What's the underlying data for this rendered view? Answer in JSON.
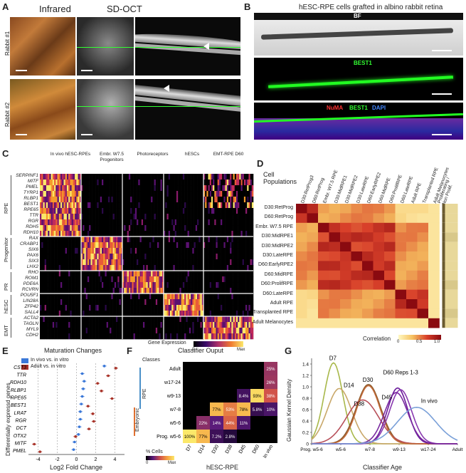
{
  "panelA": {
    "label": "A",
    "header_ir": "Infrared",
    "header_oct": "SD-OCT",
    "row1": "Rabbit #1",
    "row2": "Rabbit #2"
  },
  "panelB": {
    "label": "B",
    "title": "hESC-RPE cells grafted in albino rabbit retina",
    "bf": "BF",
    "best1": "BEST1",
    "merge_numa": "NuMA",
    "merge_best1": "BEST1",
    "merge_dapi": "DAPI"
  },
  "panelC": {
    "label": "C",
    "col_headers": [
      "In vivo hESC-RPEs",
      "Embr. W7.5 Progenitors",
      "Photoreceptors",
      "hESCs",
      "EMT-RPE D60"
    ],
    "groups": [
      "RPE",
      "Progenitor",
      "PR",
      "hESC",
      "EMT"
    ],
    "genes": [
      "SERPINF1",
      "MITF",
      "PMEL",
      "TYRP1",
      "RLBP1",
      "BEST1",
      "RPE65",
      "TTR",
      "RGR",
      "RDH5",
      "RDH10",
      "RAX",
      "CRABP1",
      "SIX6",
      "PAX6",
      "SIX3",
      "LHX2",
      "RHO",
      "ROM1",
      "PDE6A",
      "RCVRN",
      "POU5F1",
      "LIN28A",
      "ZFP42",
      "SALL4",
      "ACTA2",
      "TAGLN",
      "MYL9",
      "CDH2"
    ],
    "legend_title": "Gene Expression",
    "legend_min": "0",
    "legend_max": "Max"
  },
  "panelD": {
    "label": "D",
    "title": "Cell Populations",
    "rows": [
      "D30:RetProg",
      "D60:RetProg",
      "Embr. W7.5 RPE",
      "D30:MidRPE1",
      "D30:MidRPE2",
      "D30:LateRPE",
      "D60:EarlyRPE2",
      "D60:MidRPE",
      "D60:ProlifRPE",
      "D60:LateRPE",
      "Adult RPE",
      "Transplanted RPE",
      "Adult Melanocytes"
    ],
    "cols": [
      "D30:RetProg3",
      "D60:RetProg",
      "Embr. W7.5 RPE",
      "D30:MidRPE1",
      "D30:MidRPE2",
      "D30:LateRPE",
      "D60:EarlyRPE2",
      "D60:MidRPE",
      "D60:ProlifRPE",
      "D60:LateRPE",
      "Adult RPE",
      "Transplanted RPE",
      "Adult Melanocytes",
      "Proliferating / Non Prolif."
    ],
    "legend_title": "Correlation",
    "legend_ticks": [
      "0",
      "0.5",
      "1.0"
    ]
  },
  "panelE": {
    "label": "E",
    "title": "Maturation Changes",
    "legend_invivo": "In vivo vs. in vitro",
    "legend_adult": "Adult vs. in vitro",
    "ylabel": "Differentially expressd genes",
    "xlabel": "Log2 Fold Change",
    "xticks": [
      "-4",
      "-2",
      "0",
      "2",
      "4"
    ],
    "colors": {
      "invivo": "#3b78d8",
      "adult": "#a83228"
    },
    "chart_data": {
      "type": "scatter",
      "categories": [
        "CST3",
        "TTR",
        "RDH10",
        "RLBP1",
        "RPE65",
        "BEST1",
        "LRAT",
        "RGR",
        "DCT",
        "OTX2",
        "MITF",
        "PMEL"
      ],
      "series": [
        {
          "name": "In vivo vs. in vitro",
          "values": [
            2.9,
            0.6,
            0.8,
            0.7,
            0.6,
            0.5,
            0.4,
            0.4,
            0.3,
            0.2,
            -0.2,
            -0.3
          ]
        },
        {
          "name": "Adult vs. in vitro",
          "values": [
            4.1,
            3.3,
            2.2,
            2.6,
            3.7,
            1.2,
            1.7,
            1.8,
            1.3,
            -0.1,
            -4.4,
            -3.8
          ]
        }
      ],
      "xlim": [
        -5,
        5
      ]
    }
  },
  "panelF": {
    "label": "F",
    "title": "Classifier Ouput",
    "classes_label": "Classes",
    "rpe_label": "RPE",
    "embryonic_label": "Embryonic",
    "xlabel": "hESC-RPE",
    "legend_title": "% Cells",
    "legend_min": "0",
    "legend_max": "Max",
    "chart_data": {
      "type": "heatmap",
      "rows": [
        "Adult",
        "w17-24",
        "w9-13",
        "w7-8",
        "w5-6",
        "Prog. w5-6"
      ],
      "cols": [
        "D7",
        "D14",
        "D30",
        "D38",
        "D45",
        "D60",
        "In vivo"
      ],
      "values": [
        [
          0,
          0,
          0,
          0,
          0,
          0,
          25
        ],
        [
          0,
          0,
          0,
          0,
          0,
          0,
          26
        ],
        [
          0,
          0,
          0,
          0,
          8.4,
          93,
          38
        ],
        [
          0,
          0,
          77,
          53,
          78,
          5.8,
          10
        ],
        [
          0,
          22,
          14,
          44,
          11,
          0,
          0
        ],
        [
          100,
          77,
          7.2,
          2.8,
          0,
          0,
          0
        ]
      ],
      "labels": [
        [
          "",
          "",
          "",
          "",
          "",
          "",
          "25%"
        ],
        [
          "",
          "",
          "",
          "",
          "",
          "",
          "26%"
        ],
        [
          "",
          "",
          "",
          "",
          "8.4%",
          "93%",
          "38%"
        ],
        [
          "",
          "",
          "77%",
          "53%",
          "78%",
          "5.8%",
          "10%"
        ],
        [
          "",
          "22%",
          "14%",
          "44%",
          "11%",
          "",
          ""
        ],
        [
          "100%",
          "77%",
          "7.2%",
          "2.8%",
          "",
          "",
          ""
        ]
      ]
    }
  },
  "panelG": {
    "label": "G",
    "ylabel": "Gaussian Kernel Density",
    "xlabel": "Classifier Age",
    "xticks": [
      "Prog. w5-6",
      "w5-6",
      "w7-8",
      "w9-13",
      "w17-24",
      "Adult"
    ],
    "yticks": [
      "0",
      "0.2",
      "0.4",
      "0.6",
      "0.8",
      "1.0",
      "1.2",
      "1.4"
    ],
    "chart_data": {
      "type": "line",
      "x_categories": [
        "Prog. w5-6",
        "w5-6",
        "w7-8",
        "w9-13",
        "w17-24",
        "Adult"
      ],
      "ylim": [
        0,
        1.5
      ],
      "series": [
        {
          "name": "D7",
          "color": "#a8b84a",
          "peak_x": 0.75,
          "peak_y": 1.42,
          "width": 0.32
        },
        {
          "name": "D14",
          "color": "#c9a86a",
          "peak_x": 0.95,
          "peak_y": 0.97,
          "width": 0.42
        },
        {
          "name": "D30",
          "color": "#8a5a2a",
          "peak_x": 1.95,
          "peak_y": 1.04,
          "width": 0.42
        },
        {
          "name": "D38",
          "color": "#b8505a",
          "peak_x": 1.75,
          "peak_y": 0.77,
          "width": 0.55
        },
        {
          "name": "D45",
          "color": "#c26a3a",
          "peak_x": 1.95,
          "peak_y": 1.02,
          "width": 0.4
        },
        {
          "name": "D60 Reps 1-3",
          "color": "#6a1a9a",
          "peak_x": 2.95,
          "peak_y": 0.98,
          "width": 0.35
        },
        {
          "name": "D60 Reps 1-3",
          "color": "#8a3ab0",
          "peak_x": 3.05,
          "peak_y": 0.95,
          "width": 0.38
        },
        {
          "name": "D60 Reps 1-3",
          "color": "#7a2aa0",
          "peak_x": 2.9,
          "peak_y": 0.9,
          "width": 0.4
        },
        {
          "name": "In vivo",
          "color": "#7aa0d8",
          "peak_x": 3.6,
          "peak_y": 0.64,
          "width": 0.65
        }
      ]
    }
  }
}
